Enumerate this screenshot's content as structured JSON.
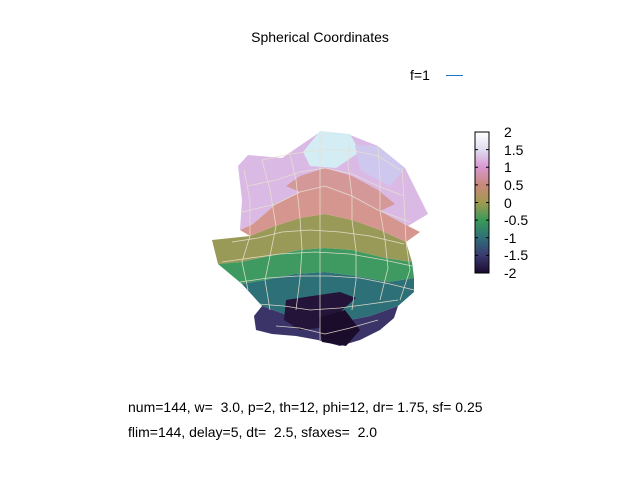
{
  "chart_data": {
    "type": "surface3d",
    "title": "Spherical Coordinates",
    "legend": [
      {
        "label": "f=1",
        "color": "#1e78c8"
      }
    ],
    "colorbar": {
      "range": [
        -2,
        2
      ],
      "ticks": [
        "2",
        "1.5",
        "1",
        "0.5",
        "0",
        "-0.5",
        "-1",
        "-1.5",
        "-2"
      ],
      "gradient": [
        "#1a0a2e",
        "#3a3a70",
        "#2e6e78",
        "#3a9a58",
        "#a09a50",
        "#c8887a",
        "#d898d0",
        "#e0dcf0",
        "#ffffff"
      ]
    },
    "info": {
      "line1": "num=144, w=  3.0, p=2, th=12, phi=12, dr= 1.75, sf= 0.25",
      "line2": "flim=144, delay=5, dt=  2.5, sfaxes=  2.0"
    }
  }
}
